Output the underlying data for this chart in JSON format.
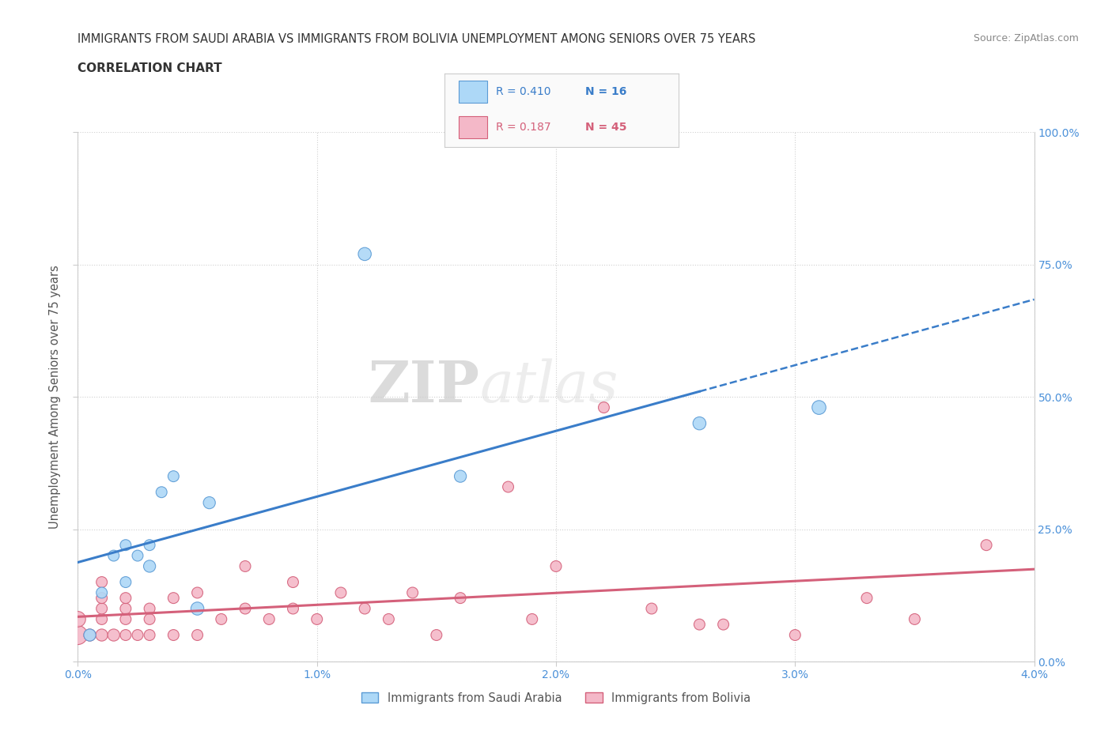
{
  "title_line1": "IMMIGRANTS FROM SAUDI ARABIA VS IMMIGRANTS FROM BOLIVIA UNEMPLOYMENT AMONG SENIORS OVER 75 YEARS",
  "title_line2": "CORRELATION CHART",
  "source_text": "Source: ZipAtlas.com",
  "ylabel": "Unemployment Among Seniors over 75 years",
  "xlim": [
    0.0,
    0.04
  ],
  "ylim": [
    0.0,
    1.0
  ],
  "xtick_labels": [
    "0.0%",
    "1.0%",
    "2.0%",
    "3.0%",
    "4.0%"
  ],
  "xtick_vals": [
    0.0,
    0.01,
    0.02,
    0.03,
    0.04
  ],
  "ytick_labels": [
    "0.0%",
    "25.0%",
    "50.0%",
    "75.0%",
    "100.0%"
  ],
  "ytick_vals": [
    0.0,
    0.25,
    0.5,
    0.75,
    1.0
  ],
  "saudi_color": "#ADD8F7",
  "saudi_edge_color": "#5B9BD5",
  "bolivia_color": "#F4B8C8",
  "bolivia_edge_color": "#D4607A",
  "saudi_R": 0.41,
  "saudi_N": 16,
  "bolivia_R": 0.187,
  "bolivia_N": 45,
  "saudi_line_color": "#3A7DC9",
  "bolivia_line_color": "#D4607A",
  "watermark_zip": "ZIP",
  "watermark_atlas": "atlas",
  "saudi_x": [
    0.0005,
    0.001,
    0.0015,
    0.002,
    0.002,
    0.0025,
    0.003,
    0.003,
    0.0035,
    0.004,
    0.005,
    0.0055,
    0.012,
    0.016,
    0.026,
    0.031
  ],
  "saudi_y": [
    0.05,
    0.13,
    0.2,
    0.15,
    0.22,
    0.2,
    0.18,
    0.22,
    0.32,
    0.35,
    0.1,
    0.3,
    0.77,
    0.35,
    0.45,
    0.48
  ],
  "bolivia_x": [
    0.0,
    0.0,
    0.0005,
    0.001,
    0.001,
    0.001,
    0.001,
    0.001,
    0.0015,
    0.002,
    0.002,
    0.002,
    0.002,
    0.0025,
    0.003,
    0.003,
    0.003,
    0.004,
    0.004,
    0.005,
    0.005,
    0.006,
    0.007,
    0.007,
    0.008,
    0.009,
    0.009,
    0.01,
    0.011,
    0.012,
    0.013,
    0.014,
    0.015,
    0.016,
    0.018,
    0.019,
    0.02,
    0.022,
    0.024,
    0.026,
    0.027,
    0.03,
    0.033,
    0.035,
    0.038
  ],
  "bolivia_y": [
    0.05,
    0.08,
    0.05,
    0.05,
    0.08,
    0.1,
    0.12,
    0.15,
    0.05,
    0.05,
    0.08,
    0.1,
    0.12,
    0.05,
    0.05,
    0.08,
    0.1,
    0.05,
    0.12,
    0.05,
    0.13,
    0.08,
    0.1,
    0.18,
    0.08,
    0.1,
    0.15,
    0.08,
    0.13,
    0.1,
    0.08,
    0.13,
    0.05,
    0.12,
    0.33,
    0.08,
    0.18,
    0.48,
    0.1,
    0.07,
    0.07,
    0.05,
    0.12,
    0.08,
    0.22
  ],
  "saudi_marker_sizes": [
    120,
    100,
    100,
    100,
    100,
    100,
    120,
    100,
    100,
    100,
    140,
    120,
    140,
    120,
    140,
    160
  ],
  "bolivia_marker_sizes": [
    300,
    200,
    120,
    120,
    100,
    100,
    100,
    100,
    120,
    100,
    100,
    100,
    100,
    100,
    100,
    100,
    100,
    100,
    100,
    100,
    100,
    100,
    100,
    100,
    100,
    100,
    100,
    100,
    100,
    100,
    100,
    100,
    100,
    100,
    100,
    100,
    100,
    100,
    100,
    100,
    100,
    100,
    100,
    100,
    100
  ],
  "background_color": "#FFFFFF",
  "grid_color": "#D0D0D0",
  "title_color": "#333333",
  "axis_label_color": "#555555",
  "tick_label_color": "#4A90D9",
  "legend_label_color_saudi": "#3A7DC9",
  "legend_label_color_bolivia": "#D4607A"
}
